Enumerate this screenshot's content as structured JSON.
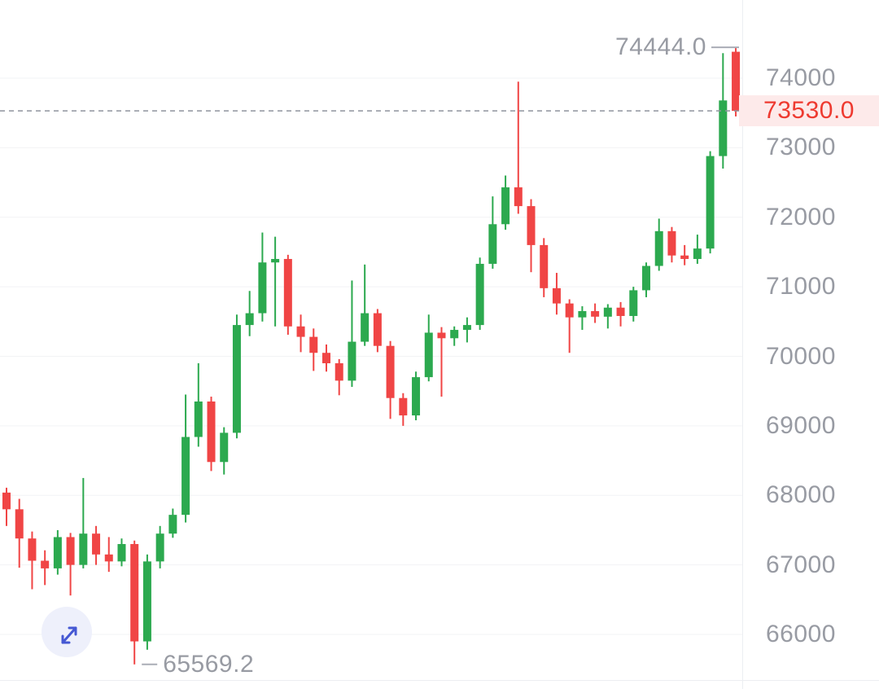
{
  "chart": {
    "markers": {
      "high": {
        "label": "74444.0",
        "price": 74444.0
      },
      "low": {
        "label": "65569.2",
        "price": 65569.2
      },
      "current": {
        "label": "73530.0",
        "price": 73530.0
      }
    }
  },
  "colors": {
    "up": "#2ca94f",
    "down": "#f04545",
    "grid": "#f2f3f5",
    "axis_border": "#eceef2",
    "axis_text": "#989ba3",
    "marker_text": "#989ba3",
    "marker_line": "#aaadb6",
    "dashed_line": "#8f949e",
    "current_price_text": "#ee3a30",
    "current_price_bg": "#fdeaea",
    "fullscreen_bg": "#eef0fb",
    "fullscreen_icon": "#4558d3"
  },
  "chart_data": {
    "type": "candlestick",
    "title": "",
    "y_ticks": [
      74000,
      73000,
      72000,
      71000,
      70000,
      69000,
      68000,
      67000,
      66000
    ],
    "high": 74444.0,
    "low": 65569.2,
    "last_price": 73530.0,
    "legend": [],
    "ohlc": [
      [
        68040,
        68110,
        67560,
        67800
      ],
      [
        67800,
        67950,
        66960,
        67380
      ],
      [
        67380,
        67480,
        66650,
        67060
      ],
      [
        67060,
        67210,
        66710,
        66950
      ],
      [
        66950,
        67500,
        66860,
        67400
      ],
      [
        67400,
        67460,
        66560,
        67000
      ],
      [
        67000,
        68250,
        66950,
        67450
      ],
      [
        67450,
        67560,
        67000,
        67150
      ],
      [
        67150,
        67400,
        66900,
        67050
      ],
      [
        67050,
        67380,
        66980,
        67300
      ],
      [
        67300,
        67350,
        65569.2,
        65900
      ],
      [
        65900,
        67150,
        65780,
        67050
      ],
      [
        67050,
        67560,
        66950,
        67450
      ],
      [
        67450,
        67810,
        67390,
        67720
      ],
      [
        67720,
        69450,
        67610,
        68840
      ],
      [
        68840,
        69900,
        68700,
        69350
      ],
      [
        69350,
        69420,
        68350,
        68480
      ],
      [
        68480,
        68980,
        68300,
        68900
      ],
      [
        68900,
        70600,
        68820,
        70450
      ],
      [
        70450,
        70940,
        70290,
        70620
      ],
      [
        70620,
        71780,
        70500,
        71350
      ],
      [
        71350,
        71720,
        70430,
        71400
      ],
      [
        71400,
        71460,
        70310,
        70430
      ],
      [
        70430,
        70600,
        70060,
        70280
      ],
      [
        70280,
        70400,
        69790,
        70050
      ],
      [
        70050,
        70170,
        69780,
        69900
      ],
      [
        69900,
        69960,
        69440,
        69650
      ],
      [
        69650,
        71090,
        69560,
        70210
      ],
      [
        70210,
        71320,
        70150,
        70620
      ],
      [
        70620,
        70680,
        70060,
        70150
      ],
      [
        70150,
        70220,
        69100,
        69400
      ],
      [
        69400,
        69470,
        69000,
        69150
      ],
      [
        69150,
        69780,
        69080,
        69700
      ],
      [
        69700,
        70600,
        69640,
        70340
      ],
      [
        70340,
        70420,
        69420,
        70260
      ],
      [
        70260,
        70430,
        70150,
        70380
      ],
      [
        70380,
        70560,
        70200,
        70450
      ],
      [
        70450,
        71420,
        70380,
        71330
      ],
      [
        71330,
        72300,
        71260,
        71900
      ],
      [
        71900,
        72600,
        71820,
        72430
      ],
      [
        72430,
        73950,
        72050,
        72160
      ],
      [
        72160,
        72260,
        71210,
        71600
      ],
      [
        71600,
        71700,
        70850,
        70980
      ],
      [
        70980,
        71200,
        70600,
        70760
      ],
      [
        70760,
        70820,
        70050,
        70560
      ],
      [
        70560,
        70720,
        70380,
        70650
      ],
      [
        70650,
        70760,
        70480,
        70570
      ],
      [
        70570,
        70750,
        70400,
        70700
      ],
      [
        70700,
        70780,
        70430,
        70580
      ],
      [
        70580,
        71000,
        70500,
        70950
      ],
      [
        70950,
        71350,
        70850,
        71300
      ],
      [
        71300,
        71980,
        71230,
        71800
      ],
      [
        71800,
        71860,
        71350,
        71450
      ],
      [
        71450,
        71600,
        71310,
        71400
      ],
      [
        71400,
        71750,
        71330,
        71550
      ],
      [
        71550,
        72950,
        71480,
        72880
      ],
      [
        72880,
        74360,
        72700,
        73680
      ],
      [
        74380,
        74444,
        73450,
        73530
      ]
    ]
  }
}
